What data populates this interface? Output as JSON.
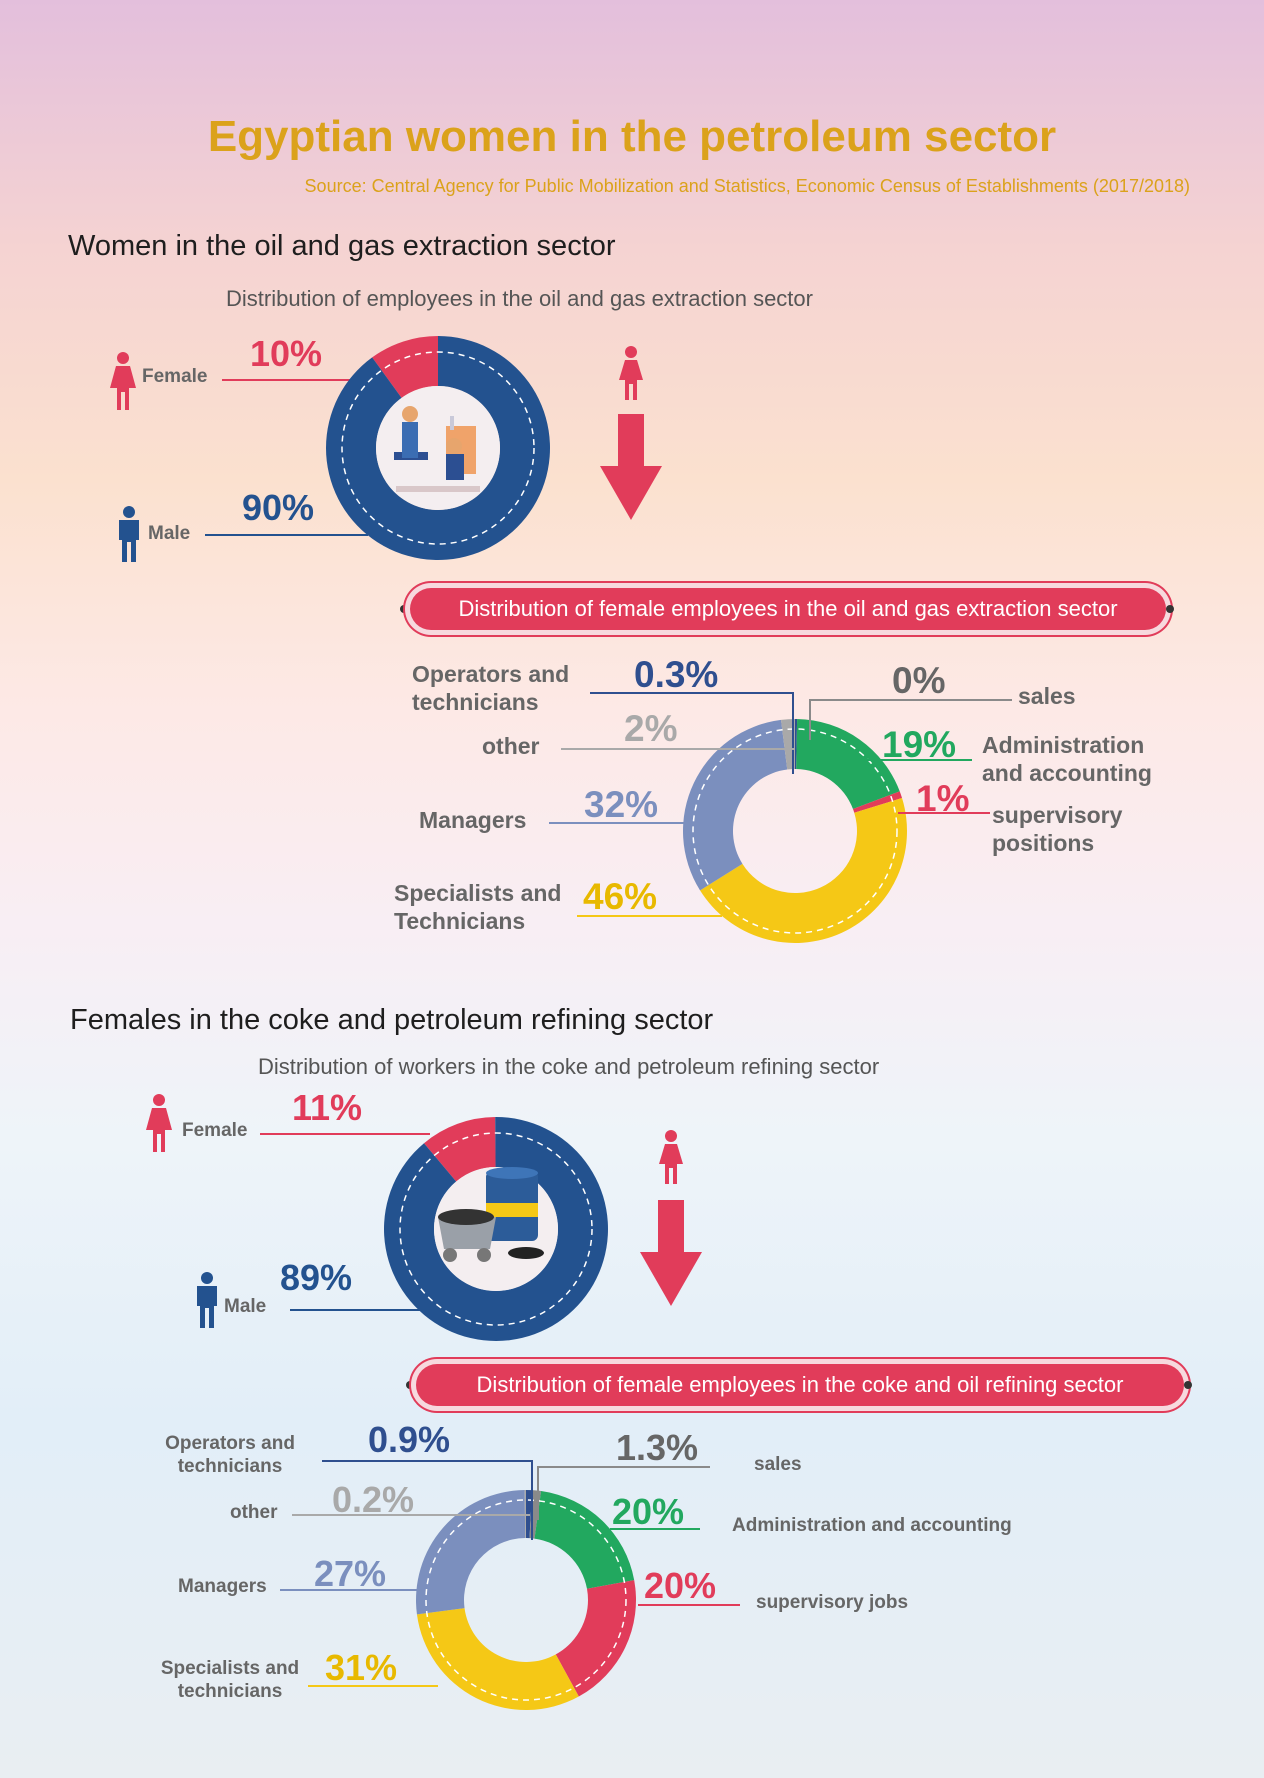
{
  "title": "Egyptian women in the petroleum sector",
  "source": "Source: Central Agency for Public Mobilization and Statistics, Economic Census of Establishments (2017/2018)",
  "section1": {
    "heading": "Women in the oil and gas extraction sector",
    "subtitle": "Distribution of employees in the oil and gas extraction sector",
    "female_label": "Female",
    "male_label": "Male",
    "female_pct": "10%",
    "male_pct": "90%",
    "banner": "Distribution of female employees in the oil and gas extraction sector",
    "labels": {
      "operators": "Operators and technicians",
      "other": "other",
      "managers": "Managers",
      "specialists": "Specialists and Technicians",
      "sales": "sales",
      "admin": "Administration and accounting",
      "supervisory": "supervisory positions"
    },
    "pcts": {
      "operators": "0.3%",
      "other": "2%",
      "managers": "32%",
      "specialists": "46%",
      "sales": "0%",
      "admin": "19%",
      "supervisory": "1%"
    }
  },
  "section2": {
    "heading": "Females in the coke and petroleum refining sector",
    "subtitle": "Distribution of workers in the coke and petroleum refining sector",
    "female_label": "Female",
    "male_label": "Male",
    "female_pct": "11%",
    "male_pct": "89%",
    "banner": "Distribution of female employees in the coke and oil refining sector",
    "labels": {
      "operators": "Operators and technicians",
      "other": "other",
      "managers": "Managers",
      "specialists": "Specialists and technicians",
      "sales": "sales",
      "admin": "Administration and accounting",
      "supervisory": "supervisory jobs"
    },
    "pcts": {
      "operators": "0.9%",
      "other": "0.2%",
      "managers": "27%",
      "specialists": "31%",
      "sales": "1.3%",
      "admin": "20%",
      "supervisory": "20%"
    }
  },
  "colors": {
    "female": "#e13c5a",
    "male": "#23528f",
    "admin": "#22a85f",
    "supervisory": "#e13c5a",
    "specialists": "#f5c816",
    "managers": "#7b8fbe",
    "other": "#a9a9a9",
    "operators": "#2f4f8f",
    "sales": "#8a8a8a"
  },
  "chart_data": [
    {
      "type": "pie",
      "title": "Distribution of employees in the oil and gas extraction sector",
      "categories": [
        "Female",
        "Male"
      ],
      "values": [
        10,
        90
      ]
    },
    {
      "type": "pie",
      "title": "Distribution of female employees in the oil and gas extraction sector",
      "categories": [
        "Operators and technicians",
        "sales",
        "Administration and accounting",
        "supervisory positions",
        "Specialists and Technicians",
        "Managers",
        "other"
      ],
      "values": [
        0.3,
        0,
        19,
        1,
        46,
        32,
        2
      ]
    },
    {
      "type": "pie",
      "title": "Distribution of workers in the coke and petroleum refining sector",
      "categories": [
        "Female",
        "Male"
      ],
      "values": [
        11,
        89
      ]
    },
    {
      "type": "pie",
      "title": "Distribution of female employees in the coke and oil refining sector",
      "categories": [
        "Operators and technicians",
        "sales",
        "Administration and accounting",
        "supervisory jobs",
        "Specialists and technicians",
        "Managers",
        "other"
      ],
      "values": [
        0.9,
        1.3,
        20,
        20,
        31,
        27,
        0.2
      ]
    }
  ]
}
